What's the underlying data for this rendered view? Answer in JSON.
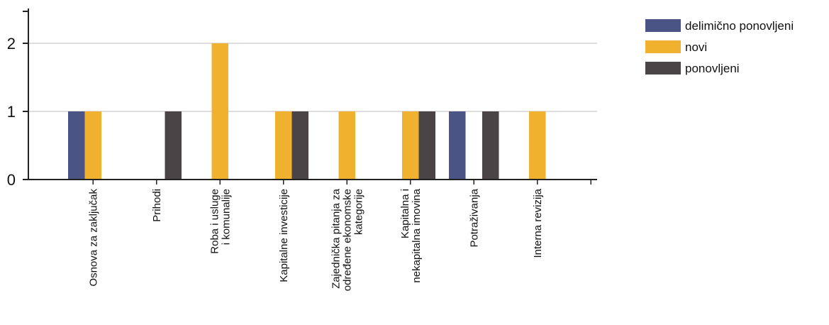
{
  "chart_data": {
    "type": "bar",
    "categories": [
      [
        "Osnova za zaključak"
      ],
      [
        "Prihodi"
      ],
      [
        "Roba i usluge",
        "i komunalije"
      ],
      [
        "Kapitalne investicije"
      ],
      [
        "Zajednička pitanja za",
        "određene ekonomske",
        "kategorije"
      ],
      [
        "Kapitalna i",
        "nekapitalna imovina"
      ],
      [
        "Potraživanja"
      ],
      [
        "Interna revizija"
      ]
    ],
    "series": [
      {
        "name": "delimično ponovljeni",
        "color": "#4a5485",
        "values": [
          1,
          0,
          0,
          0,
          0,
          0,
          1,
          0
        ]
      },
      {
        "name": "novi",
        "color": "#f0b22e",
        "values": [
          1,
          0,
          2,
          1,
          1,
          1,
          0,
          1
        ]
      },
      {
        "name": "ponovljeni",
        "color": "#4a4446",
        "values": [
          0,
          1,
          0,
          1,
          0,
          1,
          1,
          0
        ]
      }
    ],
    "yticks": [
      0,
      1,
      2
    ],
    "ylim": [
      0,
      2.5
    ],
    "grid": true,
    "legend_position": "top-right"
  }
}
